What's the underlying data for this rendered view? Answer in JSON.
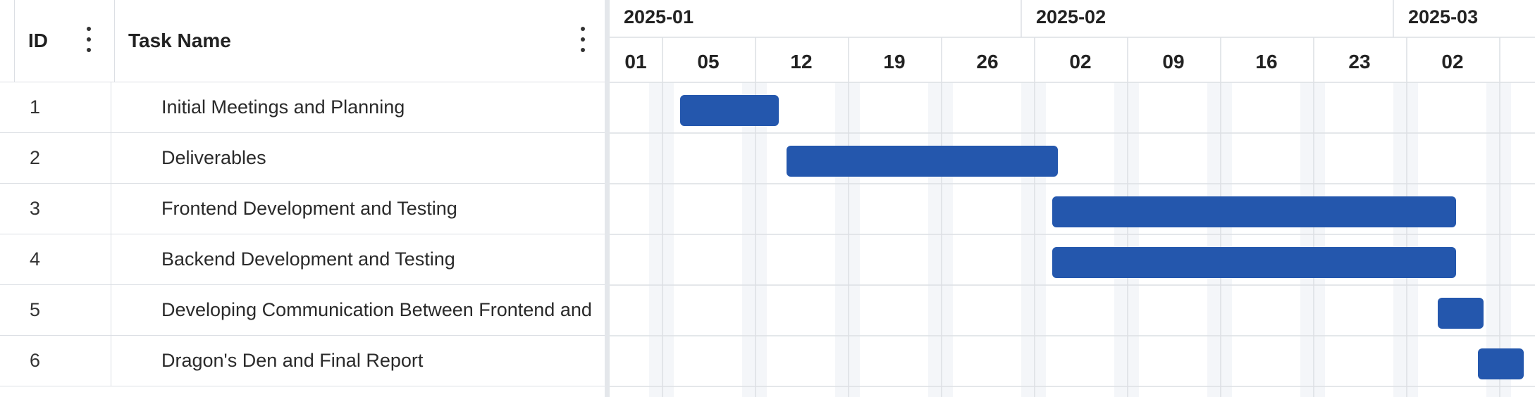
{
  "grid": {
    "columns": {
      "id": "ID",
      "name": "Task Name"
    },
    "rows": [
      {
        "id": "1",
        "name": "Initial Meetings and Planning"
      },
      {
        "id": "2",
        "name": "Deliverables"
      },
      {
        "id": "3",
        "name": "Frontend Development and Testing"
      },
      {
        "id": "4",
        "name": "Backend Development and Testing"
      },
      {
        "id": "5",
        "name": "Developing Communication Between Frontend and Backend"
      },
      {
        "id": "6",
        "name": "Dragon's Den and Final Report"
      }
    ]
  },
  "timeline": {
    "months": [
      "2025-01",
      "2025-02",
      "2025-03"
    ],
    "weeks": [
      "01",
      "05",
      "12",
      "19",
      "26",
      "02",
      "09",
      "16",
      "23",
      "02"
    ]
  },
  "colors": {
    "bar": "#2457ad",
    "grid_line": "#dcdfe4",
    "weekend": "#f4f6f9"
  }
}
